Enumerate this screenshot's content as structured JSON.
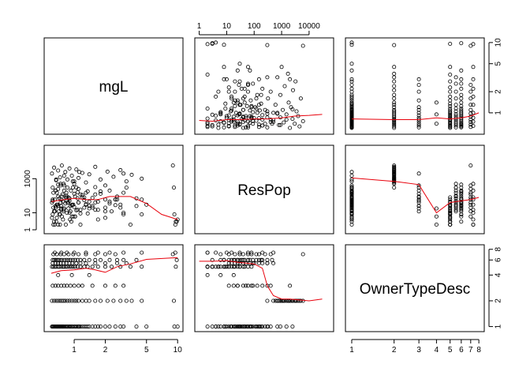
{
  "chart_data": {
    "type": "scatter",
    "title": "",
    "variables": [
      {
        "name": "mgL",
        "scale": "log",
        "range": [
          0.55,
          10.5
        ],
        "ticks": [
          1,
          2,
          5,
          10
        ],
        "tick_labels": [
          "1",
          "2",
          "5",
          "10"
        ]
      },
      {
        "name": "ResPop",
        "scale": "log",
        "range": [
          0.9,
          60000
        ],
        "ticks": [
          1,
          10,
          100,
          1000,
          10000
        ],
        "tick_labels": [
          "1",
          "10",
          "100",
          "1000",
          "10000"
        ],
        "left_ticks": [
          1,
          10,
          1000
        ],
        "left_tick_labels": [
          "1",
          "10",
          "1000"
        ]
      },
      {
        "name": "OwnerTypeDesc",
        "scale": "log",
        "range": [
          0.95,
          8.3
        ],
        "ticks": [
          1,
          2,
          3,
          4,
          5,
          6,
          7,
          8
        ],
        "tick_labels": [
          "1",
          "2",
          "3",
          "4",
          "5",
          "6",
          "7",
          "8"
        ],
        "right_ticks": [
          1,
          2,
          4,
          6,
          8
        ],
        "right_tick_labels": [
          "1",
          "2",
          "4",
          "6",
          "8"
        ]
      }
    ],
    "grid": false,
    "smoother": "lowess",
    "observations": {
      "mgL": [
        0.61,
        0.62,
        0.63,
        0.64,
        0.65,
        0.66,
        0.67,
        0.68,
        0.69,
        0.7,
        0.71,
        0.72,
        0.73,
        0.74,
        0.75,
        0.76,
        0.77,
        0.78,
        0.79,
        0.8,
        0.82,
        0.83,
        0.85,
        0.86,
        0.88,
        0.9,
        0.91,
        0.93,
        0.95,
        0.97,
        1.0,
        1.02,
        1.05,
        1.08,
        1.1,
        1.12,
        1.15,
        1.2,
        1.25,
        1.3,
        1.35,
        1.4,
        1.5,
        1.6,
        1.7,
        1.8,
        2.0,
        2.2,
        2.5,
        2.8,
        3.0,
        4.0,
        5.0,
        9.3,
        10.0,
        0.61,
        0.64,
        0.67,
        0.7,
        0.73,
        0.76,
        0.79,
        0.82,
        0.86,
        0.9,
        0.95,
        1.0,
        1.05,
        1.1,
        1.2,
        1.3,
        1.4,
        1.6,
        1.8,
        2.1,
        2.4,
        2.8,
        3.2,
        3.6,
        4.5,
        9.2,
        0.62,
        0.66,
        0.7,
        0.75,
        0.8,
        0.85,
        0.92,
        1.0,
        1.1,
        1.2,
        1.5,
        2.0,
        2.5,
        3.0,
        0.61,
        0.63,
        0.65,
        0.67,
        0.7,
        0.72,
        0.75,
        0.78,
        0.8,
        0.83,
        0.86,
        0.9,
        0.94,
        0.98,
        1.02,
        1.08,
        1.15,
        1.25,
        1.35,
        1.5,
        1.7,
        2.0,
        2.3,
        2.8,
        3.5,
        4.5,
        9.6,
        0.62,
        0.66,
        0.7,
        0.74,
        0.79,
        0.84,
        0.9,
        0.96,
        1.05,
        1.15,
        1.3,
        1.6,
        2.0,
        2.6,
        3.2,
        0.62,
        0.64,
        0.66,
        0.68,
        0.7,
        0.73,
        0.76,
        0.8,
        0.84,
        0.88,
        0.92,
        0.97,
        1.02,
        1.08,
        1.15,
        1.25,
        1.4,
        1.6,
        1.8,
        2.2,
        2.6,
        3.0,
        4.0,
        9.8,
        0.63,
        0.68,
        0.74,
        0.8,
        0.88,
        0.98,
        1.1,
        1.3,
        1.6,
        2.0,
        2.5,
        9.0,
        0.65,
        0.75,
        0.85,
        1.0,
        1.3,
        1.7,
        2.2,
        3.0,
        4.5,
        9.5,
        0.7,
        0.95,
        1.4
      ],
      "ResPop": [
        40,
        8,
        150,
        3,
        60,
        20,
        900,
        5,
        30,
        250,
        12,
        70,
        2,
        400,
        25,
        6,
        120,
        45,
        15,
        1500,
        35,
        80,
        10,
        300,
        18,
        50,
        4,
        200,
        28,
        700,
        22,
        90,
        14,
        160,
        40,
        2500,
        9,
        110,
        55,
        32,
        180,
        25,
        75,
        320,
        15,
        130,
        60,
        45,
        28,
        20,
        150,
        70,
        30,
        8,
        4,
        2000,
        4500,
        800,
        3000,
        1200,
        6000,
        500,
        2500,
        900,
        4000,
        1500,
        700,
        3500,
        1100,
        2200,
        600,
        1800,
        5000,
        900,
        2600,
        1300,
        3200,
        700,
        1700,
        1000,
        300,
        300,
        25,
        90,
        18,
        200,
        50,
        12,
        130,
        40,
        80,
        25,
        400,
        60,
        2000,
        5,
        2,
        12,
        3,
        25,
        8,
        60,
        4,
        18,
        2,
        40,
        10,
        3,
        30,
        6,
        15,
        2,
        80,
        9,
        20,
        45,
        5,
        12,
        30,
        2,
        8,
        3,
        50,
        200,
        25,
        500,
        12,
        100,
        70,
        30,
        300,
        15,
        150,
        40,
        20,
        90,
        300,
        60,
        12,
        200,
        30,
        450,
        8,
        90,
        18,
        150,
        40,
        25,
        300,
        6,
        70,
        120,
        20,
        45,
        15,
        180,
        35,
        60,
        8,
        25,
        3,
        20,
        150,
        40,
        400,
        80,
        6,
        250,
        30,
        120,
        12,
        60,
        6000,
        2,
        15,
        80,
        500,
        30,
        4,
        200,
        10,
        60,
        2,
        2,
        6,
        18
      ],
      "OwnerTypeDesc": [
        1,
        1,
        1,
        1,
        1,
        1,
        1,
        1,
        1,
        1,
        1,
        1,
        1,
        1,
        1,
        1,
        1,
        1,
        1,
        1,
        1,
        1,
        1,
        1,
        1,
        1,
        1,
        1,
        1,
        1,
        1,
        1,
        1,
        1,
        1,
        1,
        1,
        1,
        1,
        1,
        1,
        1,
        1,
        1,
        1,
        1,
        1,
        1,
        1,
        1,
        1,
        1,
        1,
        1,
        1,
        2,
        2,
        2,
        2,
        2,
        2,
        2,
        2,
        2,
        2,
        2,
        2,
        2,
        2,
        2,
        2,
        2,
        2,
        2,
        2,
        2,
        2,
        2,
        2,
        2,
        2,
        3,
        3,
        3,
        3,
        3,
        3,
        3,
        3,
        3,
        3,
        3,
        3,
        3,
        3,
        5,
        5,
        5,
        5,
        5,
        5,
        5,
        5,
        5,
        5,
        5,
        5,
        5,
        5,
        5,
        5,
        5,
        5,
        5,
        5,
        5,
        5,
        5,
        5,
        5,
        5,
        5,
        5.5,
        5.5,
        5.5,
        5.5,
        5.5,
        5.5,
        5.5,
        5.5,
        5.5,
        5.5,
        5.5,
        5.5,
        5.5,
        5.5,
        5.5,
        6,
        6,
        6,
        6,
        6,
        6,
        6,
        6,
        6,
        6,
        6,
        6,
        6,
        6,
        6,
        6,
        6,
        6,
        6,
        6,
        6,
        6,
        6,
        6,
        7,
        7,
        7,
        7,
        7,
        7,
        7,
        7,
        7,
        7,
        7,
        7,
        7.3,
        7.3,
        7.3,
        7.3,
        7.3,
        7.3,
        7.3,
        7.3,
        7.3,
        7.3,
        4,
        4,
        4
      ]
    },
    "smooth_lines": [
      {
        "row": "ResPop",
        "col": "mgL",
        "x": [
          0.6,
          0.8,
          1.0,
          1.3,
          1.7,
          2.2,
          2.8,
          3.5,
          5.0,
          7.0,
          10.0
        ],
        "y": [
          45,
          60,
          70,
          60,
          60,
          90,
          90,
          90,
          35,
          8,
          4
        ]
      },
      {
        "row": "OwnerTypeDesc",
        "col": "mgL",
        "x": [
          0.6,
          0.75,
          1.0,
          1.3,
          1.6,
          2.0,
          2.6,
          3.5,
          5.0,
          10.0
        ],
        "y": [
          4.2,
          4.5,
          4.6,
          4.8,
          4.6,
          4.3,
          5.0,
          5.4,
          6.1,
          6.4
        ]
      },
      {
        "row": "OwnerTypeDesc",
        "col": "ResPop",
        "x": [
          1,
          3,
          10,
          30,
          100,
          200,
          300,
          500,
          1000,
          2000,
          10000,
          30000
        ],
        "y": [
          5.8,
          5.8,
          5.9,
          5.6,
          5.4,
          4.8,
          3.0,
          2.3,
          2.1,
          2.1,
          2.0,
          2.1
        ]
      },
      {
        "row": "mgL",
        "col": "ResPop",
        "x": [
          1,
          3,
          10,
          30,
          100,
          300,
          1000,
          3000,
          10000,
          30000
        ],
        "y": [
          0.78,
          0.76,
          0.8,
          0.8,
          0.82,
          0.82,
          0.85,
          0.9,
          0.92,
          0.95
        ]
      },
      {
        "row": "mgL",
        "col": "OwnerTypeDesc",
        "x": [
          1,
          2,
          3,
          4,
          5,
          6,
          7,
          8
        ],
        "y": [
          0.82,
          0.8,
          0.8,
          0.85,
          0.82,
          0.85,
          0.9,
          1.0
        ]
      },
      {
        "row": "ResPop",
        "col": "OwnerTypeDesc",
        "x": [
          1,
          2,
          3,
          4,
          5,
          6,
          7,
          8
        ],
        "y": [
          1100,
          700,
          450,
          10,
          40,
          50,
          60,
          80
        ]
      }
    ]
  }
}
